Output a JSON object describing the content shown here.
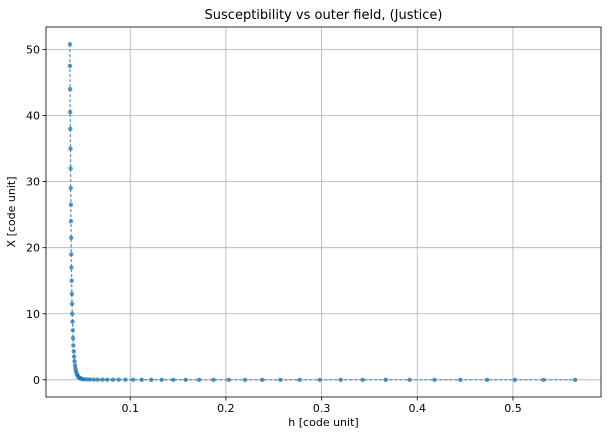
{
  "chart_data": {
    "type": "scatter",
    "title": "Susceptibility vs outer field, (Justice)",
    "xlabel": "h [code unit]",
    "ylabel": "X [code unit]",
    "xlim": [
      0.012,
      0.592
    ],
    "ylim": [
      -2.6,
      53.4
    ],
    "xticks": [
      0.1,
      0.2,
      0.3,
      0.4,
      0.5
    ],
    "xtick_labels": [
      "0.1",
      "0.2",
      "0.3",
      "0.4",
      "0.5"
    ],
    "yticks": [
      0,
      10,
      20,
      30,
      40,
      50
    ],
    "ytick_labels": [
      "0",
      "10",
      "20",
      "30",
      "40",
      "50"
    ],
    "grid": true,
    "legend": "none",
    "marker": "circle",
    "line_style": "dashed",
    "series": [
      {
        "color": "#1f77b4",
        "x": [
          0.037,
          0.037,
          0.0372,
          0.0373,
          0.0374,
          0.0376,
          0.0377,
          0.0378,
          0.038,
          0.0381,
          0.0383,
          0.0384,
          0.0386,
          0.0388,
          0.039,
          0.0392,
          0.0394,
          0.0397,
          0.04,
          0.0403,
          0.0406,
          0.041,
          0.0414,
          0.0418,
          0.0423,
          0.0428,
          0.0434,
          0.044,
          0.0448,
          0.0456,
          0.0465,
          0.0475,
          0.0487,
          0.05,
          0.052,
          0.055,
          0.058,
          0.062,
          0.066,
          0.071,
          0.076,
          0.082,
          0.088,
          0.095,
          0.103,
          0.112,
          0.122,
          0.133,
          0.145,
          0.158,
          0.172,
          0.187,
          0.203,
          0.22,
          0.238,
          0.257,
          0.277,
          0.298,
          0.32,
          0.343,
          0.367,
          0.392,
          0.418,
          0.445,
          0.473,
          0.502,
          0.532,
          0.565
        ],
        "y": [
          50.8,
          47.5,
          44.0,
          40.5,
          38.0,
          35.0,
          32.0,
          29.0,
          26.5,
          24.0,
          21.5,
          19.0,
          17.0,
          15.0,
          13.0,
          11.5,
          10.0,
          8.8,
          7.5,
          6.3,
          5.2,
          4.3,
          3.5,
          2.8,
          2.2,
          1.7,
          1.3,
          0.95,
          0.7,
          0.5,
          0.35,
          0.25,
          0.18,
          0.12,
          0.08,
          0.06,
          0.05,
          0.04,
          0.035,
          0.03,
          0.025,
          0.02,
          0.018,
          0.015,
          0.012,
          0.01,
          0.009,
          0.008,
          0.007,
          0.006,
          0.005,
          0.005,
          0.004,
          0.004,
          0.003,
          0.003,
          0.003,
          0.002,
          0.002,
          0.002,
          0.002,
          0.002,
          0.001,
          0.001,
          0.001,
          0.001,
          0.001,
          0.001
        ]
      }
    ]
  }
}
